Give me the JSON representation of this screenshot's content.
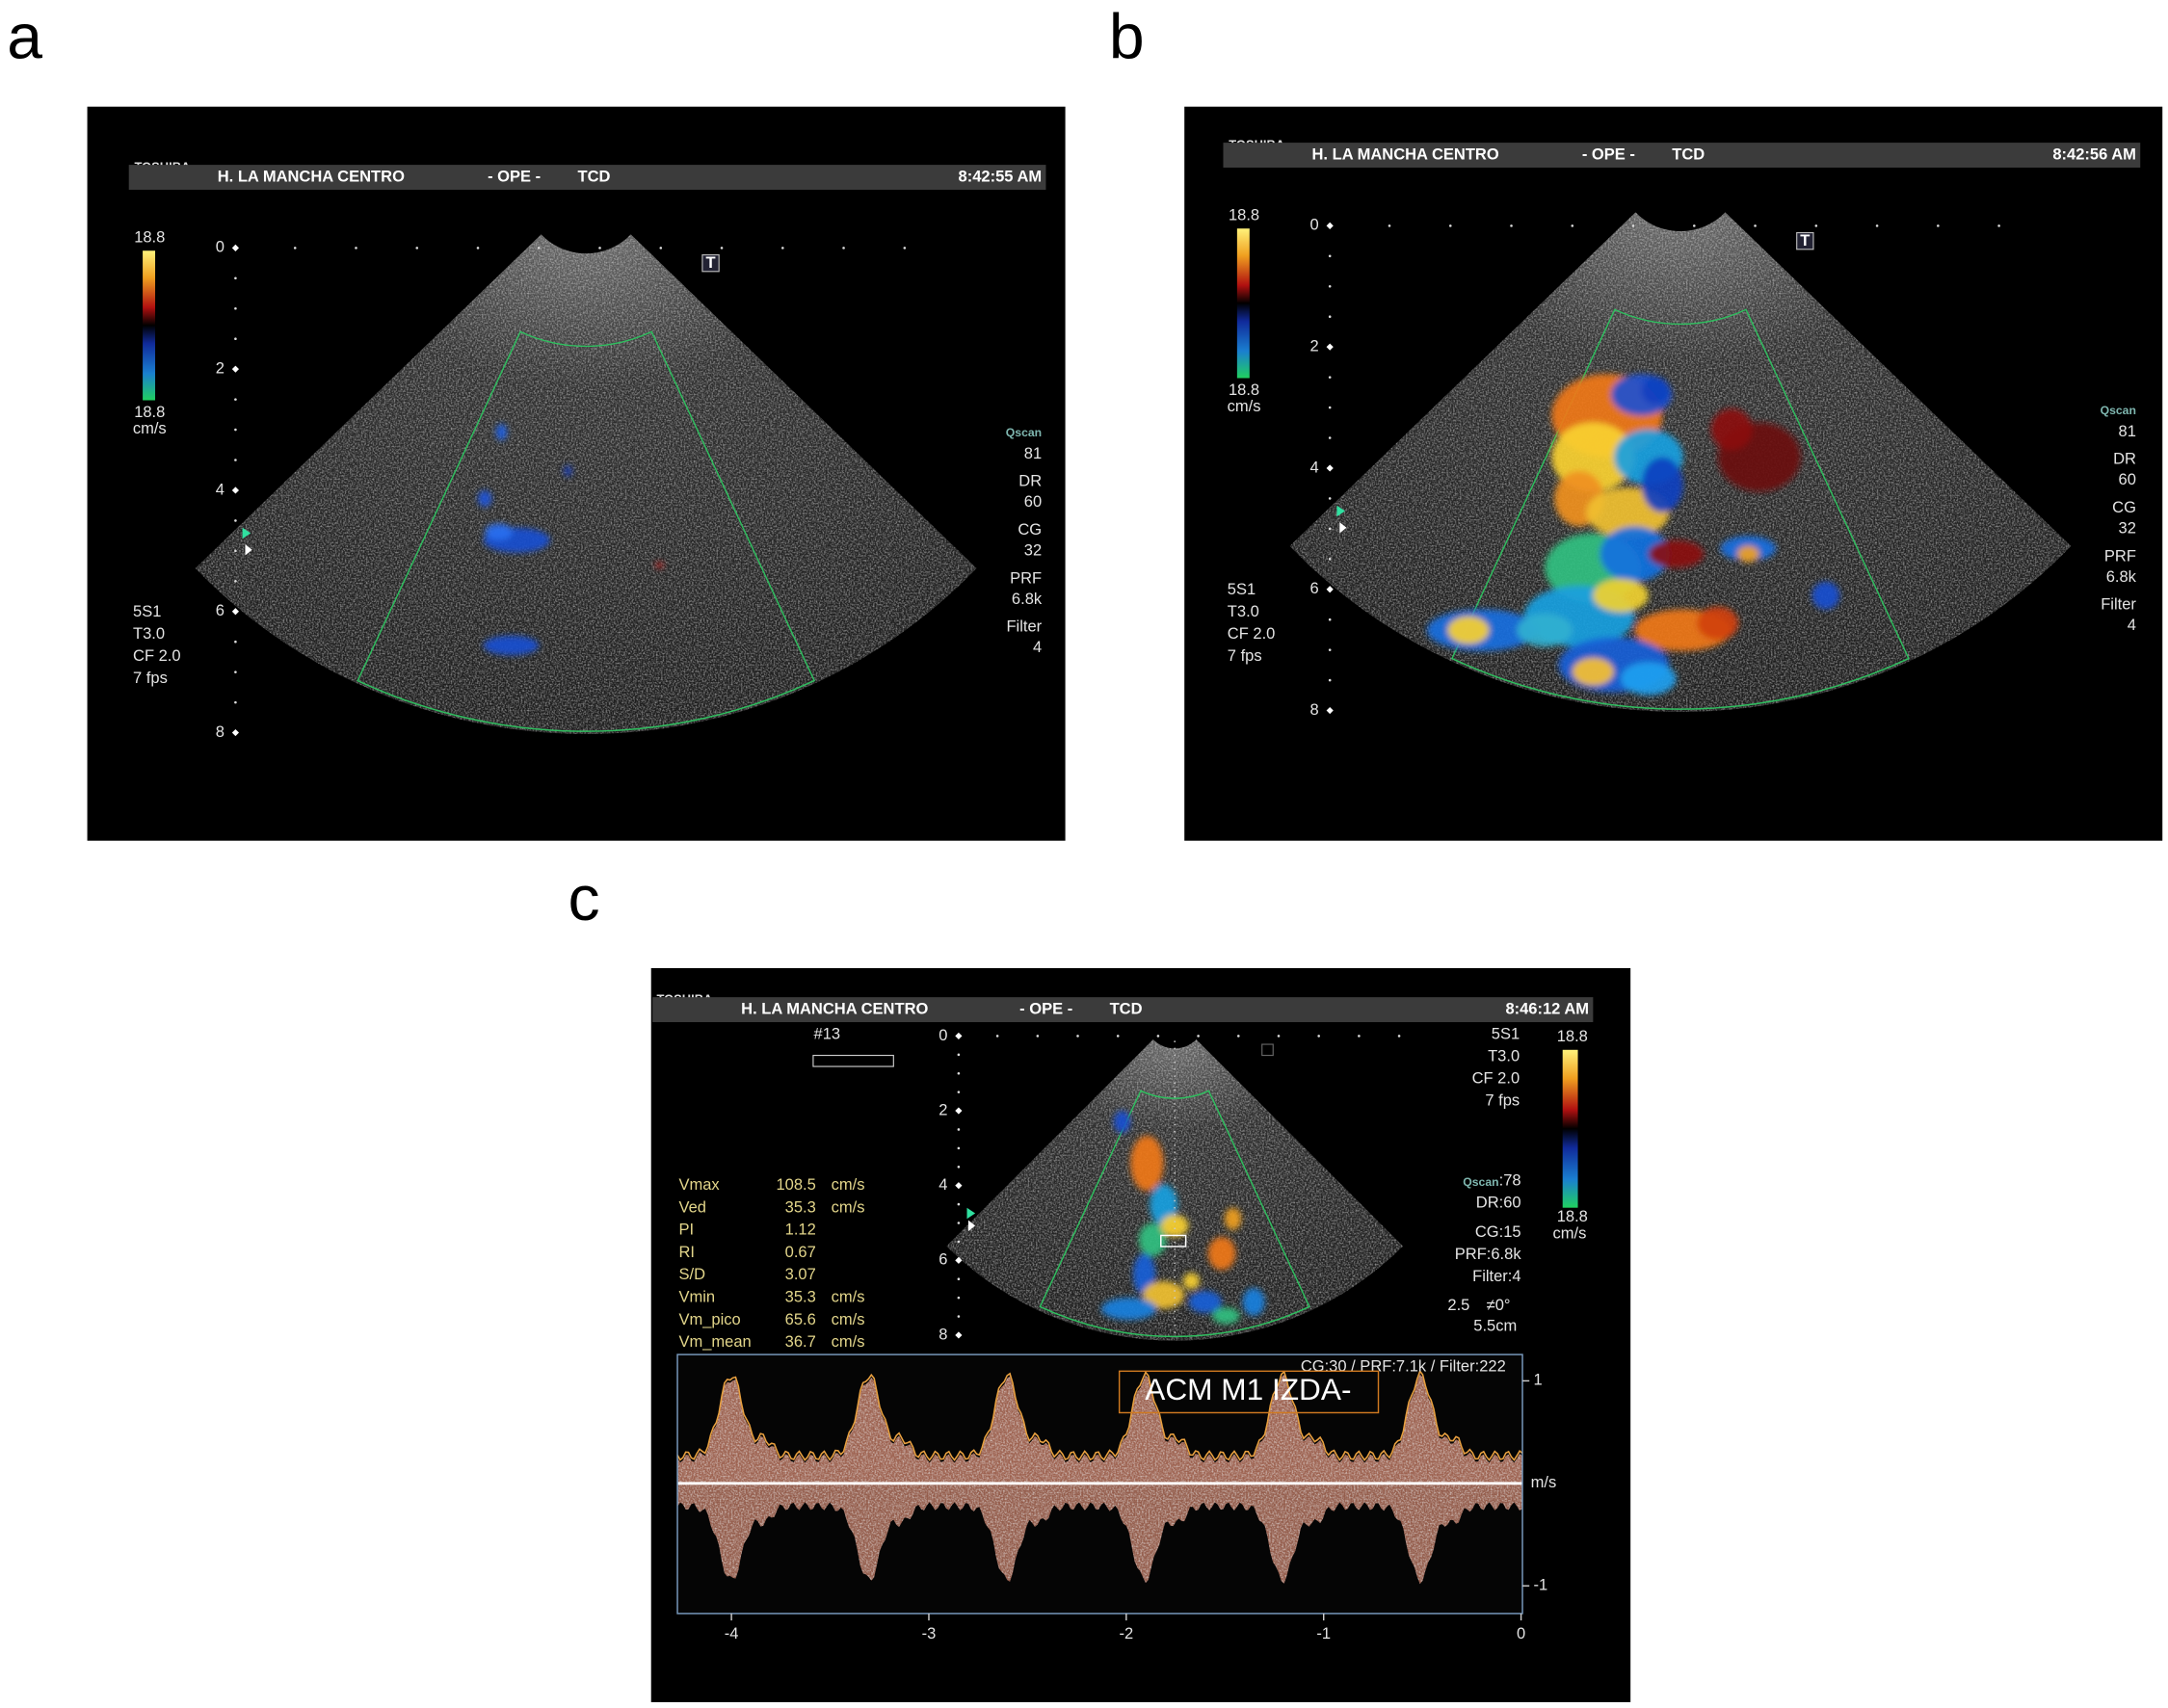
{
  "panels": [
    {
      "letter": "a",
      "header": {
        "logo": "TOSHIBA",
        "hospital": "H. LA MANCHA CENTRO",
        "mode": "- OPE -",
        "exam": "TCD",
        "time": "8:42:55 AM"
      },
      "scale": {
        "top": "18.8",
        "bottom": "18.8",
        "unit": "cm/s"
      },
      "depth_ticks": [
        0,
        2,
        4,
        6,
        8
      ],
      "marker": "T",
      "probe": [
        "5S1",
        "T3.0",
        "CF 2.0",
        "7 fps"
      ],
      "settings": [
        {
          "label": "Qscan",
          "value": "81"
        },
        {
          "label": "DR",
          "value": "60"
        },
        {
          "label": "CG",
          "value": "32"
        },
        {
          "label": "PRF",
          "value": "6.8k"
        },
        {
          "label": "Filter",
          "value": "4"
        }
      ]
    },
    {
      "letter": "b",
      "header": {
        "logo": "TOSHIBA",
        "hospital": "H. LA MANCHA CENTRO",
        "mode": "- OPE -",
        "exam": "TCD",
        "time": "8:42:56 AM"
      },
      "scale": {
        "top": "18.8",
        "bottom": "18.8",
        "unit": "cm/s"
      },
      "depth_ticks": [
        0,
        2,
        4,
        6,
        8
      ],
      "marker": "T",
      "probe": [
        "5S1",
        "T3.0",
        "CF 2.0",
        "7 fps"
      ],
      "settings": [
        {
          "label": "Qscan",
          "value": "81"
        },
        {
          "label": "DR",
          "value": "60"
        },
        {
          "label": "CG",
          "value": "32"
        },
        {
          "label": "PRF",
          "value": "6.8k"
        },
        {
          "label": "Filter",
          "value": "4"
        }
      ]
    }
  ],
  "panel_c": {
    "letter": "c",
    "header": {
      "logo": "TOSHIBA",
      "hospital": "H. LA MANCHA CENTRO",
      "mode": "- OPE -",
      "exam": "TCD",
      "time": "8:46:12 AM"
    },
    "frame": "#13",
    "measurements": [
      {
        "name": "Vmax",
        "value": 108.5,
        "unit": "cm/s"
      },
      {
        "name": "Ved",
        "value": 35.3,
        "unit": "cm/s"
      },
      {
        "name": "PI",
        "value": 1.12
      },
      {
        "name": "RI",
        "value": 0.67
      },
      {
        "name": "S/D",
        "value": 3.07
      },
      {
        "name": "Vmin",
        "value": 35.3,
        "unit": "cm/s"
      },
      {
        "name": "Vm_pico",
        "value": 65.6,
        "unit": "cm/s"
      },
      {
        "name": "Vm_mean",
        "value": 36.7,
        "unit": "cm/s"
      }
    ],
    "depth_ticks": [
      0,
      2,
      4,
      6,
      8
    ],
    "probe": [
      "5S1",
      "T3.0",
      "CF 2.0",
      "7 fps"
    ],
    "scale": {
      "top": "18.8",
      "bottom": "18.8",
      "unit": "cm/s"
    },
    "qscan": {
      "label": "Qscan",
      "value": ":78"
    },
    "settings": [
      "DR:60",
      "CG:15",
      "PRF:6.8k",
      "Filter:4"
    ],
    "angle": [
      "2.5",
      "≠0°"
    ],
    "gate_depth": "5.5cm",
    "doppler": {
      "params": "CG:30 /   PRF:7.1k   / Filter:222",
      "label": "ACM M1 IZDA-",
      "velocity_ticks": [
        1,
        -1
      ],
      "velocity_unit": "m/s",
      "time_ticks": [
        -4,
        -3,
        -2,
        -1,
        0
      ]
    }
  }
}
